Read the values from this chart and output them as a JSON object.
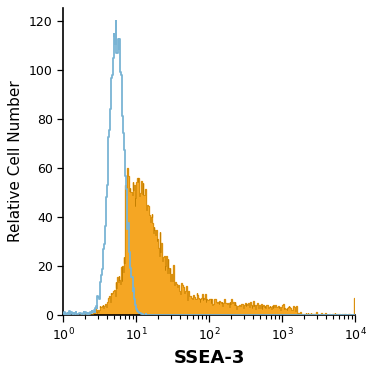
{
  "title": "",
  "xlabel": "SSEA-3",
  "ylabel": "Relative Cell Number",
  "xlim_log": [
    1,
    10000
  ],
  "ylim": [
    0,
    125
  ],
  "yticks": [
    0,
    20,
    40,
    60,
    80,
    100,
    120
  ],
  "blue_color": "#7ab4d4",
  "orange_color": "#f5a623",
  "blue_line_color": "#3a7ab0",
  "background_color": "#ffffff",
  "xlabel_fontsize": 13,
  "ylabel_fontsize": 11
}
